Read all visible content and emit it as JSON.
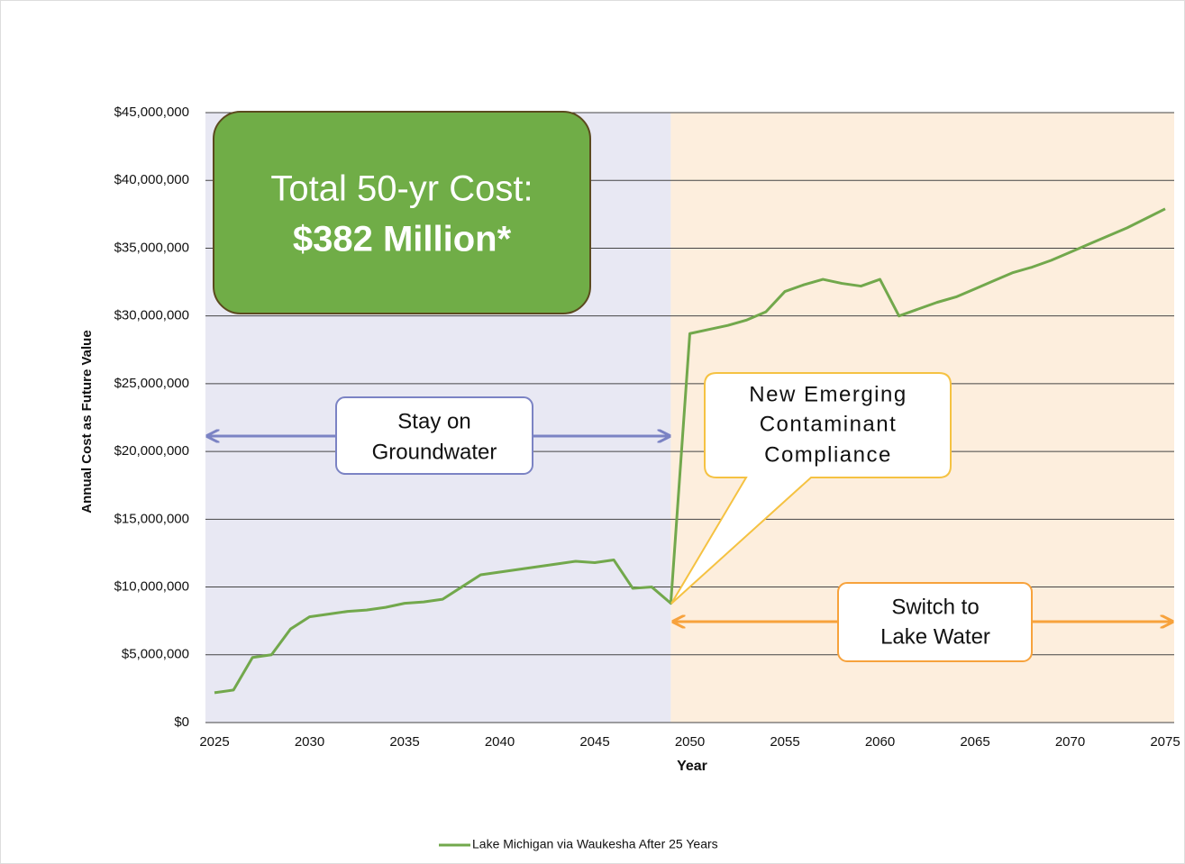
{
  "chart_data": {
    "type": "line",
    "y_axis_label": "Annual Cost as  Future Value",
    "x_axis_label": "Year",
    "x": [
      2025,
      2026,
      2027,
      2028,
      2029,
      2030,
      2031,
      2032,
      2033,
      2034,
      2035,
      2036,
      2037,
      2038,
      2039,
      2040,
      2041,
      2042,
      2043,
      2044,
      2045,
      2046,
      2047,
      2048,
      2049,
      2050,
      2051,
      2052,
      2053,
      2054,
      2055,
      2056,
      2057,
      2058,
      2059,
      2060,
      2061,
      2062,
      2063,
      2064,
      2065,
      2066,
      2067,
      2068,
      2069,
      2070,
      2071,
      2072,
      2073,
      2074,
      2075
    ],
    "series": [
      {
        "name": "Lake Michigan via Waukesha After 25 Years",
        "color": "#72a84c",
        "values": [
          2200000,
          2400000,
          4800000,
          5000000,
          6900000,
          7800000,
          8000000,
          8200000,
          8300000,
          8500000,
          8800000,
          8900000,
          9100000,
          10000000,
          10900000,
          11100000,
          11300000,
          11500000,
          11700000,
          11900000,
          11800000,
          12000000,
          9900000,
          10000000,
          8800000,
          28700000,
          29000000,
          29300000,
          29700000,
          30300000,
          31800000,
          32300000,
          32700000,
          32400000,
          32200000,
          32700000,
          30000000,
          30500000,
          31000000,
          31400000,
          32000000,
          32600000,
          33200000,
          33600000,
          34100000,
          34700000,
          35300000,
          35900000,
          36500000,
          37200000,
          37900000
        ]
      }
    ],
    "xlim": [
      2025,
      2075
    ],
    "xticks": [
      2025,
      2030,
      2035,
      2040,
      2045,
      2050,
      2055,
      2060,
      2065,
      2070,
      2075
    ],
    "ylim": [
      0,
      45000000
    ],
    "yticks": [
      {
        "value": 0,
        "label": "$0"
      },
      {
        "value": 5000000,
        "label": "$5,000,000"
      },
      {
        "value": 10000000,
        "label": "$10,000,000"
      },
      {
        "value": 15000000,
        "label": "$15,000,000"
      },
      {
        "value": 20000000,
        "label": "$20,000,000"
      },
      {
        "value": 25000000,
        "label": "$25,000,000"
      },
      {
        "value": 30000000,
        "label": "$30,000,000"
      },
      {
        "value": 35000000,
        "label": "$35,000,000"
      },
      {
        "value": 40000000,
        "label": "$40,000,000"
      },
      {
        "value": 45000000,
        "label": "$45,000,000"
      }
    ],
    "grid": true,
    "legend": "bottom",
    "regions": [
      {
        "xlim": [
          2025,
          2049
        ],
        "color": "#e8e8f3"
      },
      {
        "xlim": [
          2049,
          2075
        ],
        "color": "#fdeedd"
      }
    ],
    "annotations": {
      "total_cost": [
        "Total 50-yr Cost:",
        "$382 Million*"
      ],
      "groundwater": [
        "Stay on",
        "Groundwater"
      ],
      "contaminant": [
        "New Emerging",
        "Contaminant",
        "Compliance"
      ],
      "lake_water": [
        "Switch to",
        "Lake Water"
      ]
    }
  }
}
